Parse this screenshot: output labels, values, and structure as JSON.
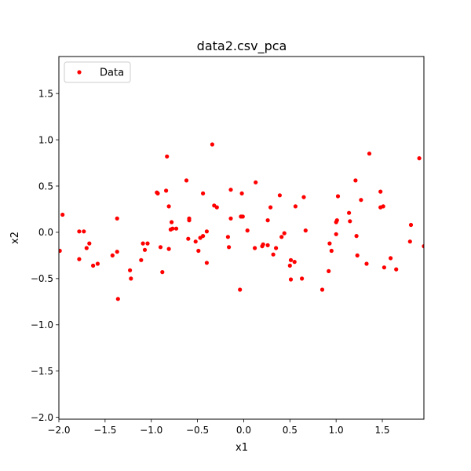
{
  "chart_data": {
    "type": "scatter",
    "title": "data2.csv_pca",
    "xlabel": "x1",
    "ylabel": "x2",
    "xlim": [
      -2.0,
      1.95
    ],
    "ylim": [
      -2.02,
      1.9
    ],
    "xticks": [
      -2.0,
      -1.5,
      -1.0,
      -0.5,
      0.0,
      0.5,
      1.0,
      1.5
    ],
    "xtick_labels": [
      "−2.0",
      "−1.5",
      "−1.0",
      "−0.5",
      "0.0",
      "0.5",
      "1.0",
      "1.5"
    ],
    "yticks": [
      -2.0,
      -1.5,
      -1.0,
      -0.5,
      0.0,
      0.5,
      1.0,
      1.5
    ],
    "ytick_labels": [
      "−2.0",
      "−1.5",
      "−1.0",
      "−0.5",
      "0.0",
      "0.5",
      "1.0",
      "1.5"
    ],
    "grid": false,
    "legend": {
      "position": "top-left",
      "entries": [
        "Data"
      ]
    },
    "series": [
      {
        "name": "Data",
        "color": "#ff0000",
        "marker": "circle",
        "points": [
          [
            -1.99,
            -0.2
          ],
          [
            -1.96,
            0.19
          ],
          [
            -1.78,
            0.01
          ],
          [
            -1.78,
            -0.29
          ],
          [
            -1.73,
            0.01
          ],
          [
            -1.7,
            -0.17
          ],
          [
            -1.67,
            -0.12
          ],
          [
            -1.63,
            -0.36
          ],
          [
            -1.58,
            -0.34
          ],
          [
            -1.42,
            -0.25
          ],
          [
            -1.37,
            -0.21
          ],
          [
            -1.37,
            0.15
          ],
          [
            -1.36,
            -0.72
          ],
          [
            -1.23,
            -0.41
          ],
          [
            -1.22,
            -0.5
          ],
          [
            -1.11,
            -0.3
          ],
          [
            -1.09,
            -0.12
          ],
          [
            -1.07,
            -0.19
          ],
          [
            -1.04,
            -0.12
          ],
          [
            -0.94,
            0.43
          ],
          [
            -0.93,
            0.42
          ],
          [
            -0.9,
            -0.16
          ],
          [
            -0.88,
            -0.43
          ],
          [
            -0.84,
            0.45
          ],
          [
            -0.83,
            0.82
          ],
          [
            -0.81,
            0.28
          ],
          [
            -0.81,
            -0.18
          ],
          [
            -0.79,
            0.03
          ],
          [
            -0.78,
            0.11
          ],
          [
            -0.77,
            0.04
          ],
          [
            -0.73,
            0.04
          ],
          [
            -0.62,
            0.56
          ],
          [
            -0.6,
            -0.07
          ],
          [
            -0.59,
            0.15
          ],
          [
            -0.59,
            0.13
          ],
          [
            -0.52,
            -0.1
          ],
          [
            -0.49,
            -0.2
          ],
          [
            -0.47,
            -0.06
          ],
          [
            -0.44,
            -0.04
          ],
          [
            -0.44,
            0.42
          ],
          [
            -0.4,
            -0.33
          ],
          [
            -0.4,
            0.01
          ],
          [
            -0.34,
            0.95
          ],
          [
            -0.32,
            0.29
          ],
          [
            -0.29,
            0.27
          ],
          [
            -0.17,
            -0.05
          ],
          [
            -0.16,
            -0.16
          ],
          [
            -0.14,
            0.46
          ],
          [
            -0.14,
            0.15
          ],
          [
            -0.04,
            -0.62
          ],
          [
            -0.03,
            0.17
          ],
          [
            -0.02,
            0.42
          ],
          [
            -0.01,
            0.17
          ],
          [
            0.04,
            0.02
          ],
          [
            0.12,
            -0.17
          ],
          [
            0.13,
            0.54
          ],
          [
            0.2,
            -0.15
          ],
          [
            0.21,
            -0.13
          ],
          [
            0.26,
            -0.14
          ],
          [
            0.26,
            0.13
          ],
          [
            0.29,
            0.27
          ],
          [
            0.32,
            -0.24
          ],
          [
            0.35,
            -0.17
          ],
          [
            0.39,
            0.4
          ],
          [
            0.41,
            -0.05
          ],
          [
            0.44,
            -0.01
          ],
          [
            0.5,
            -0.36
          ],
          [
            0.51,
            -0.51
          ],
          [
            0.51,
            -0.3
          ],
          [
            0.55,
            -0.32
          ],
          [
            0.56,
            0.28
          ],
          [
            0.63,
            -0.5
          ],
          [
            0.65,
            0.38
          ],
          [
            0.67,
            0.02
          ],
          [
            0.85,
            -0.62
          ],
          [
            0.92,
            -0.42
          ],
          [
            0.93,
            -0.12
          ],
          [
            0.95,
            -0.2
          ],
          [
            1.0,
            -0.02
          ],
          [
            1.0,
            0.11
          ],
          [
            1.01,
            0.13
          ],
          [
            1.02,
            0.39
          ],
          [
            1.14,
            0.21
          ],
          [
            1.15,
            0.12
          ],
          [
            1.21,
            0.56
          ],
          [
            1.22,
            -0.04
          ],
          [
            1.23,
            -0.25
          ],
          [
            1.27,
            0.35
          ],
          [
            1.33,
            -0.34
          ],
          [
            1.36,
            0.85
          ],
          [
            1.48,
            0.27
          ],
          [
            1.48,
            0.44
          ],
          [
            1.51,
            0.28
          ],
          [
            1.52,
            -0.38
          ],
          [
            1.59,
            -0.28
          ],
          [
            1.65,
            -0.4
          ],
          [
            1.8,
            -0.1
          ],
          [
            1.81,
            0.08
          ],
          [
            1.9,
            0.8
          ],
          [
            1.95,
            -0.15
          ]
        ]
      }
    ]
  }
}
